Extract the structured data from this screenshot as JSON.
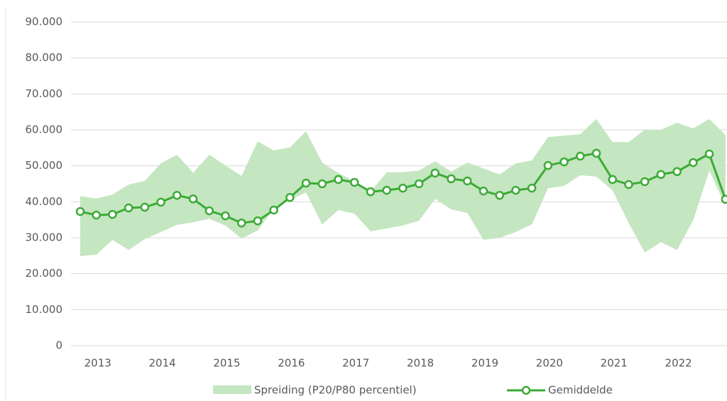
{
  "chart_data": {
    "type": "line",
    "categories": [
      null,
      "2013",
      null,
      null,
      null,
      "2014",
      null,
      null,
      null,
      "2015",
      null,
      null,
      null,
      "2016",
      null,
      null,
      null,
      "2017",
      null,
      null,
      null,
      "2018",
      null,
      null,
      null,
      "2019",
      null,
      null,
      null,
      "2020",
      null,
      null,
      null,
      "2021",
      null,
      null,
      null,
      "2022",
      null,
      null,
      null
    ],
    "band": {
      "name": "Spreiding (P20/P80 percentiel)",
      "color": "#c4e6c0",
      "high": [
        41600,
        40900,
        42000,
        44800,
        45800,
        50700,
        53100,
        48000,
        53100,
        50100,
        47200,
        56800,
        54300,
        55100,
        59600,
        50900,
        48000,
        45800,
        42800,
        48200,
        48200,
        48700,
        51300,
        48400,
        50900,
        49300,
        47600,
        50700,
        51500,
        58000,
        58400,
        58800,
        63000,
        56600,
        56600,
        60000,
        60000,
        62000,
        60400,
        63000,
        58600
      ],
      "low": [
        24900,
        25300,
        29400,
        26600,
        29600,
        31600,
        33600,
        34300,
        35300,
        33400,
        29800,
        32000,
        38100,
        40500,
        42600,
        33700,
        37700,
        36700,
        31800,
        32600,
        33400,
        34700,
        40800,
        37900,
        36900,
        29400,
        30000,
        31600,
        33700,
        43800,
        44400,
        47400,
        47000,
        43200,
        34100,
        25900,
        28800,
        26600,
        34900,
        48700,
        38900
      ]
    },
    "series": [
      {
        "name": "Gemiddelde",
        "color": "#3cab37",
        "values": [
          37300,
          36300,
          36500,
          38300,
          38500,
          39900,
          41800,
          40800,
          37500,
          36100,
          34100,
          34700,
          37700,
          41200,
          45200,
          45000,
          46200,
          45400,
          42800,
          43200,
          43800,
          45000,
          48000,
          46400,
          45800,
          43000,
          41800,
          43200,
          43800,
          50100,
          51100,
          52700,
          53500,
          46200,
          44800,
          45600,
          47600,
          48400,
          50900,
          53300,
          40700
        ]
      }
    ],
    "ylim": [
      0,
      90000
    ],
    "yticks": [
      0,
      {
        "value": 10000,
        "label": "10.000"
      },
      {
        "value": 20000,
        "label": "20.000"
      },
      {
        "value": 30000,
        "label": "30.000"
      },
      {
        "value": 40000,
        "label": "40.000"
      },
      {
        "value": 50000,
        "label": "50.000"
      },
      {
        "value": 60000,
        "label": "60.000"
      },
      {
        "value": 70000,
        "label": "70.000"
      },
      {
        "value": 80000,
        "label": "80.000"
      },
      {
        "value": 90000,
        "label": "90.000"
      }
    ],
    "grid": true
  }
}
